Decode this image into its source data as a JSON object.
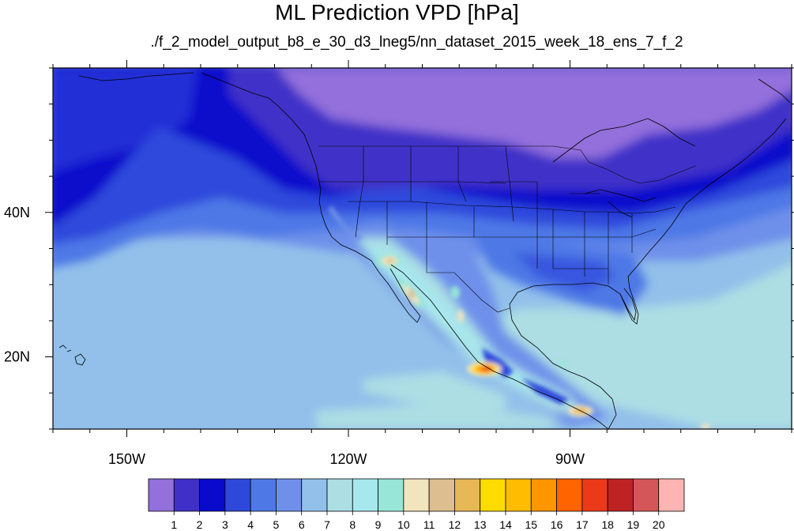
{
  "title": "ML Prediction VPD [hPa]",
  "subtitle": "./f_2_model_output_b8_e_30_d3_lneg5/nn_dataset_2015_week_18_ens_7_f_2",
  "map": {
    "projection": "cylindrical-equidistant",
    "lon_range": [
      -160,
      -60
    ],
    "lat_range": [
      10,
      60
    ],
    "x_axis_labels": [
      {
        "lon": -150,
        "label": "150W"
      },
      {
        "lon": -120,
        "label": "120W"
      },
      {
        "lon": -90,
        "label": "90W"
      }
    ],
    "y_axis_labels": [
      {
        "lat": 40,
        "label": "40N"
      },
      {
        "lat": 20,
        "label": "20N"
      }
    ],
    "features": [
      "continent outlines",
      "US state boundaries",
      "Hawaii"
    ]
  },
  "colorbar": {
    "levels": [
      "1",
      "2",
      "3",
      "4",
      "5",
      "6",
      "7",
      "8",
      "9",
      "10",
      "11",
      "12",
      "13",
      "14",
      "15",
      "16",
      "17",
      "18",
      "19",
      "20"
    ],
    "colors": [
      "#9370DB",
      "#4030C8",
      "#0A0ACC",
      "#2E48DC",
      "#4E78E6",
      "#6E90EA",
      "#92C0EA",
      "#ACDEE4",
      "#A6E8EE",
      "#98E6D8",
      "#F2E4BE",
      "#DCBE90",
      "#E6B856",
      "#FFDC00",
      "#FFBC00",
      "#FF9600",
      "#FF6400",
      "#EB3A1A",
      "#BE2222",
      "#D45658",
      "#FFB4B4"
    ]
  }
}
